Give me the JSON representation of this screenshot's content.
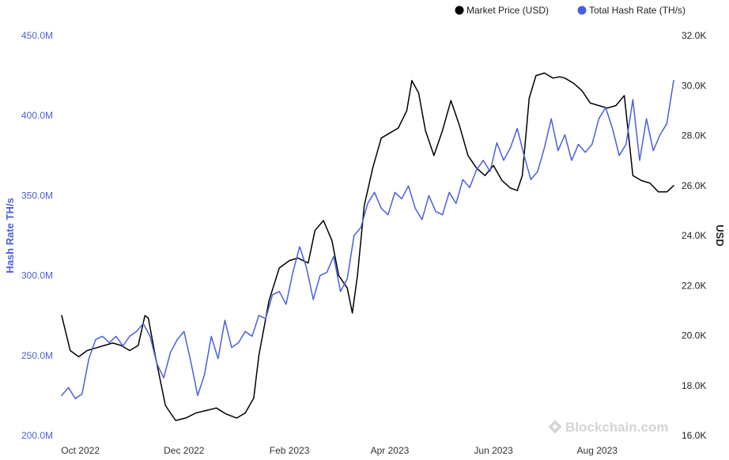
{
  "chart_data": {
    "type": "line",
    "legend": {
      "position": "top-right"
    },
    "watermark": "Blockchain.com",
    "x_tick_labels": [
      "Oct 2022",
      "Dec 2022",
      "Feb 2023",
      "Apr 2023",
      "Jun 2023",
      "Aug 2023"
    ],
    "x_range": [
      "2022-09-20",
      "2023-09-15"
    ],
    "y_left": {
      "label": "Hash Rate TH/s",
      "range": [
        200000000,
        450000000
      ],
      "tick_labels": [
        "200.0M",
        "250.0M",
        "300.0M",
        "350.0M",
        "400.0M",
        "450.0M"
      ],
      "color": "#4a5fe0"
    },
    "y_right": {
      "label": "USD",
      "range": [
        16000,
        32000
      ],
      "tick_labels": [
        "16.0K",
        "18.0K",
        "20.0K",
        "22.0K",
        "24.0K",
        "26.0K",
        "28.0K",
        "30.0K",
        "32.0K"
      ],
      "color": "#222222"
    },
    "series": [
      {
        "name": "Market Price (USD)",
        "axis": "right",
        "color": "#000000",
        "x": [
          "2022-09-20",
          "2022-09-25",
          "2022-09-30",
          "2022-10-05",
          "2022-10-10",
          "2022-10-15",
          "2022-10-20",
          "2022-10-25",
          "2022-10-30",
          "2022-11-04",
          "2022-11-08",
          "2022-11-10",
          "2022-11-14",
          "2022-11-20",
          "2022-11-26",
          "2022-12-02",
          "2022-12-08",
          "2022-12-14",
          "2022-12-20",
          "2022-12-26",
          "2023-01-01",
          "2023-01-06",
          "2023-01-11",
          "2023-01-14",
          "2023-01-20",
          "2023-01-26",
          "2023-02-01",
          "2023-02-06",
          "2023-02-12",
          "2023-02-16",
          "2023-02-21",
          "2023-02-26",
          "2023-03-02",
          "2023-03-07",
          "2023-03-10",
          "2023-03-13",
          "2023-03-17",
          "2023-03-22",
          "2023-03-27",
          "2023-04-01",
          "2023-04-06",
          "2023-04-11",
          "2023-04-14",
          "2023-04-18",
          "2023-04-22",
          "2023-04-27",
          "2023-05-02",
          "2023-05-07",
          "2023-05-12",
          "2023-05-17",
          "2023-05-22",
          "2023-05-27",
          "2023-06-01",
          "2023-06-06",
          "2023-06-11",
          "2023-06-15",
          "2023-06-18",
          "2023-06-22",
          "2023-06-26",
          "2023-07-01",
          "2023-07-06",
          "2023-07-10",
          "2023-07-13",
          "2023-07-18",
          "2023-07-23",
          "2023-07-28",
          "2023-08-02",
          "2023-08-07",
          "2023-08-12",
          "2023-08-17",
          "2023-08-22",
          "2023-08-27",
          "2023-09-01",
          "2023-09-06",
          "2023-09-11",
          "2023-09-15"
        ],
        "values": [
          20800,
          19400,
          19150,
          19400,
          19500,
          19600,
          19700,
          19600,
          19400,
          19600,
          20800,
          20700,
          19200,
          17200,
          16600,
          16700,
          16900,
          17000,
          17100,
          16850,
          16700,
          16900,
          17500,
          19200,
          21400,
          22700,
          23000,
          23100,
          22900,
          24200,
          24600,
          23800,
          22400,
          21900,
          20900,
          22400,
          25200,
          26700,
          27900,
          28100,
          28300,
          29000,
          30200,
          29700,
          28200,
          27200,
          28200,
          29400,
          28400,
          27200,
          26700,
          26400,
          26800,
          26200,
          25900,
          25800,
          26400,
          29500,
          30400,
          30500,
          30300,
          30350,
          30300,
          30100,
          29800,
          29300,
          29200,
          29100,
          29200,
          29600,
          26400,
          26200,
          26100,
          25750,
          25750,
          26000
        ]
      },
      {
        "name": "Total Hash Rate (TH/s)",
        "axis": "left",
        "color": "#4a5fe0",
        "x": [
          "2022-09-20",
          "2022-09-24",
          "2022-09-28",
          "2022-10-02",
          "2022-10-06",
          "2022-10-10",
          "2022-10-14",
          "2022-10-18",
          "2022-10-22",
          "2022-10-26",
          "2022-10-30",
          "2022-11-03",
          "2022-11-07",
          "2022-11-11",
          "2022-11-15",
          "2022-11-19",
          "2022-11-23",
          "2022-11-27",
          "2022-12-01",
          "2022-12-05",
          "2022-12-09",
          "2022-12-13",
          "2022-12-17",
          "2022-12-21",
          "2022-12-25",
          "2022-12-29",
          "2023-01-02",
          "2023-01-06",
          "2023-01-10",
          "2023-01-14",
          "2023-01-18",
          "2023-01-22",
          "2023-01-26",
          "2023-01-30",
          "2023-02-03",
          "2023-02-07",
          "2023-02-11",
          "2023-02-15",
          "2023-02-19",
          "2023-02-23",
          "2023-02-27",
          "2023-03-03",
          "2023-03-07",
          "2023-03-11",
          "2023-03-15",
          "2023-03-19",
          "2023-03-23",
          "2023-03-27",
          "2023-03-31",
          "2023-04-04",
          "2023-04-08",
          "2023-04-12",
          "2023-04-16",
          "2023-04-20",
          "2023-04-24",
          "2023-04-28",
          "2023-05-02",
          "2023-05-06",
          "2023-05-10",
          "2023-05-14",
          "2023-05-18",
          "2023-05-22",
          "2023-05-26",
          "2023-05-30",
          "2023-06-03",
          "2023-06-07",
          "2023-06-11",
          "2023-06-15",
          "2023-06-19",
          "2023-06-23",
          "2023-06-27",
          "2023-07-01",
          "2023-07-05",
          "2023-07-09",
          "2023-07-13",
          "2023-07-17",
          "2023-07-21",
          "2023-07-25",
          "2023-07-29",
          "2023-08-02",
          "2023-08-06",
          "2023-08-10",
          "2023-08-14",
          "2023-08-18",
          "2023-08-22",
          "2023-08-26",
          "2023-08-30",
          "2023-09-03",
          "2023-09-07",
          "2023-09-11",
          "2023-09-15"
        ],
        "values": [
          225000000,
          230000000,
          223000000,
          226000000,
          248000000,
          260000000,
          262000000,
          258000000,
          262000000,
          256000000,
          262000000,
          265000000,
          270000000,
          262000000,
          245000000,
          236000000,
          252000000,
          260000000,
          265000000,
          246000000,
          225000000,
          238000000,
          262000000,
          248000000,
          272000000,
          255000000,
          258000000,
          265000000,
          262000000,
          275000000,
          273000000,
          288000000,
          290000000,
          282000000,
          302000000,
          318000000,
          305000000,
          285000000,
          300000000,
          302000000,
          312000000,
          290000000,
          298000000,
          325000000,
          330000000,
          345000000,
          352000000,
          342000000,
          338000000,
          352000000,
          348000000,
          356000000,
          342000000,
          335000000,
          350000000,
          340000000,
          338000000,
          352000000,
          345000000,
          360000000,
          355000000,
          366000000,
          372000000,
          365000000,
          383000000,
          372000000,
          380000000,
          392000000,
          375000000,
          360000000,
          365000000,
          380000000,
          398000000,
          378000000,
          388000000,
          372000000,
          382000000,
          377000000,
          382000000,
          398000000,
          405000000,
          392000000,
          375000000,
          382000000,
          410000000,
          372000000,
          398000000,
          378000000,
          388000000,
          395000000,
          422000000
        ]
      }
    ]
  }
}
